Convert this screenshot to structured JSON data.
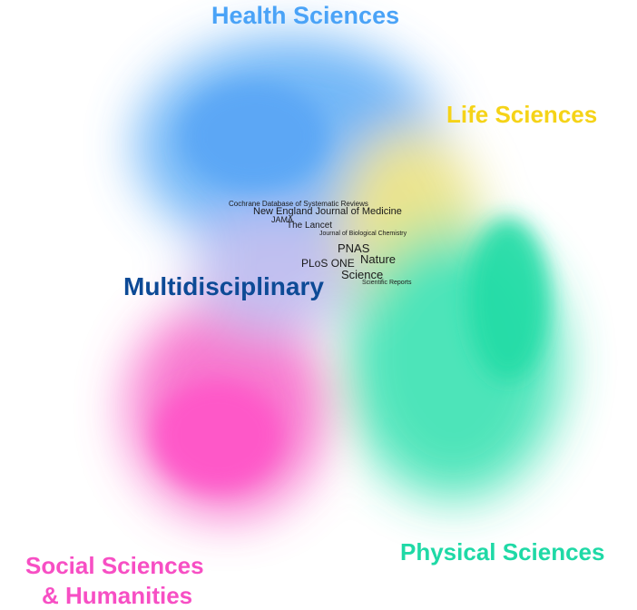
{
  "regions": {
    "health": {
      "label": "Health Sciences",
      "color": "#4aa3f7"
    },
    "life": {
      "label": "Life Sciences",
      "color": "#f5d318"
    },
    "multi": {
      "label": "Multidisciplinary",
      "color": "#0d4a96"
    },
    "social": {
      "label_line1": "Social Sciences",
      "label_line2": "& Humanities",
      "color": "#f74fc4"
    },
    "physical": {
      "label": "Physical Sciences",
      "color": "#1fd9a6"
    }
  },
  "journals": [
    "Cochrane Database of Systematic Reviews",
    "New England Journal of Medicine",
    "JAMA",
    "The Lancet",
    "Journal of Biological Chemistry",
    "PNAS",
    "Nature",
    "PLoS ONE",
    "Science",
    "Scientific Reports"
  ]
}
